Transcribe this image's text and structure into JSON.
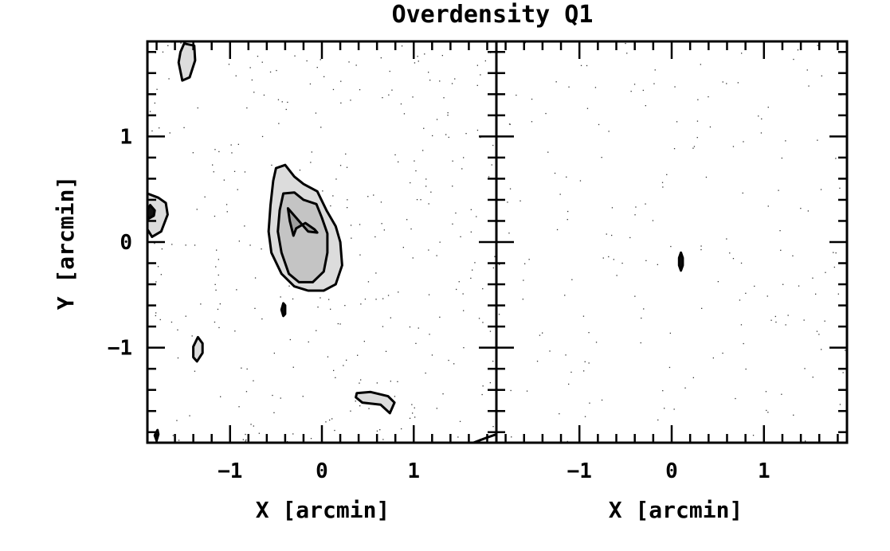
{
  "chart_data": {
    "type": "contour",
    "title": "Overdensity Q1",
    "xlabel": "X [arcmin]",
    "ylabel": "Y [arcmin]",
    "xlim": [
      -1.9,
      1.9
    ],
    "ylim": [
      -1.9,
      1.9
    ],
    "xticks": [
      -1,
      0,
      1
    ],
    "xtick_labels": [
      "−1",
      "0",
      "1"
    ],
    "yticks": [
      -1,
      0,
      1
    ],
    "ytick_labels": [
      "−1",
      "0",
      "1"
    ],
    "panels": [
      {
        "name": "left",
        "contours": [
          [
            [
              -0.5,
              0.7
            ],
            [
              -0.4,
              0.73
            ],
            [
              -0.3,
              0.62
            ],
            [
              -0.2,
              0.55
            ],
            [
              -0.05,
              0.48
            ],
            [
              0.05,
              0.3
            ],
            [
              0.15,
              0.15
            ],
            [
              0.2,
              0.0
            ],
            [
              0.22,
              -0.22
            ],
            [
              0.15,
              -0.4
            ],
            [
              0.02,
              -0.46
            ],
            [
              -0.15,
              -0.46
            ],
            [
              -0.3,
              -0.42
            ],
            [
              -0.44,
              -0.3
            ],
            [
              -0.55,
              -0.1
            ],
            [
              -0.58,
              0.1
            ],
            [
              -0.56,
              0.35
            ],
            [
              -0.53,
              0.58
            ]
          ],
          [
            [
              -0.42,
              0.46
            ],
            [
              -0.3,
              0.47
            ],
            [
              -0.2,
              0.4
            ],
            [
              -0.06,
              0.36
            ],
            [
              0.0,
              0.23
            ],
            [
              0.06,
              0.08
            ],
            [
              0.06,
              -0.1
            ],
            [
              0.02,
              -0.28
            ],
            [
              -0.1,
              -0.38
            ],
            [
              -0.25,
              -0.38
            ],
            [
              -0.36,
              -0.3
            ],
            [
              -0.44,
              -0.1
            ],
            [
              -0.48,
              0.1
            ],
            [
              -0.46,
              0.3
            ]
          ],
          [
            [
              -0.37,
              0.32
            ],
            [
              -0.25,
              0.2
            ],
            [
              -0.15,
              0.1
            ],
            [
              -0.05,
              0.09
            ],
            [
              -0.08,
              0.12
            ],
            [
              -0.18,
              0.18
            ],
            [
              -0.28,
              0.13
            ],
            [
              -0.31,
              0.06
            ],
            [
              -0.35,
              0.2
            ]
          ],
          [
            [
              -1.9,
              0.46
            ],
            [
              -1.78,
              0.42
            ],
            [
              -1.7,
              0.37
            ],
            [
              -1.68,
              0.26
            ],
            [
              -1.75,
              0.1
            ],
            [
              -1.85,
              0.05
            ],
            [
              -1.9,
              0.12
            ]
          ],
          [
            [
              -1.87,
              0.35
            ],
            [
              -1.82,
              0.3
            ],
            [
              -1.83,
              0.25
            ],
            [
              -1.89,
              0.22
            ],
            [
              -1.91,
              0.29
            ]
          ],
          [
            [
              -1.5,
              1.88
            ],
            [
              -1.39,
              1.86
            ],
            [
              -1.38,
              1.72
            ],
            [
              -1.44,
              1.56
            ],
            [
              -1.52,
              1.53
            ],
            [
              -1.56,
              1.7
            ],
            [
              -1.54,
              1.8
            ]
          ],
          [
            [
              -1.35,
              -0.9
            ],
            [
              -1.3,
              -0.96
            ],
            [
              -1.3,
              -1.05
            ],
            [
              -1.36,
              -1.13
            ],
            [
              -1.4,
              -1.09
            ],
            [
              -1.4,
              -0.99
            ]
          ],
          [
            [
              0.38,
              -1.43
            ],
            [
              0.53,
              -1.42
            ],
            [
              0.72,
              -1.46
            ],
            [
              0.79,
              -1.52
            ],
            [
              0.74,
              -1.62
            ],
            [
              0.64,
              -1.54
            ],
            [
              0.44,
              -1.52
            ],
            [
              0.37,
              -1.47
            ]
          ],
          [
            [
              -0.42,
              -0.58
            ],
            [
              -0.4,
              -0.6
            ],
            [
              -0.4,
              -0.68
            ],
            [
              -0.42,
              -0.7
            ],
            [
              -0.44,
              -0.64
            ]
          ],
          [
            [
              -1.8,
              -1.88
            ],
            [
              -1.78,
              -1.82
            ],
            [
              -1.79,
              -1.78
            ],
            [
              -1.82,
              -1.83
            ]
          ],
          [
            [
              1.65,
              -1.9
            ],
            [
              1.8,
              -1.85
            ],
            [
              1.9,
              -1.82
            ]
          ]
        ]
      },
      {
        "name": "right",
        "contours": [
          [
            [
              0.1,
              -0.1
            ],
            [
              0.12,
              -0.15
            ],
            [
              0.12,
              -0.22
            ],
            [
              0.1,
              -0.27
            ],
            [
              0.08,
              -0.22
            ],
            [
              0.08,
              -0.15
            ]
          ]
        ]
      }
    ],
    "background": "sparse random point field",
    "grid": false,
    "legend": "none",
    "colors": {
      "contour_line": "#000000",
      "fill_outer": "#dcdcdc",
      "fill_mid": "#c4c4c4",
      "fill_core": "#9e9e9e",
      "points": "#333333"
    }
  }
}
